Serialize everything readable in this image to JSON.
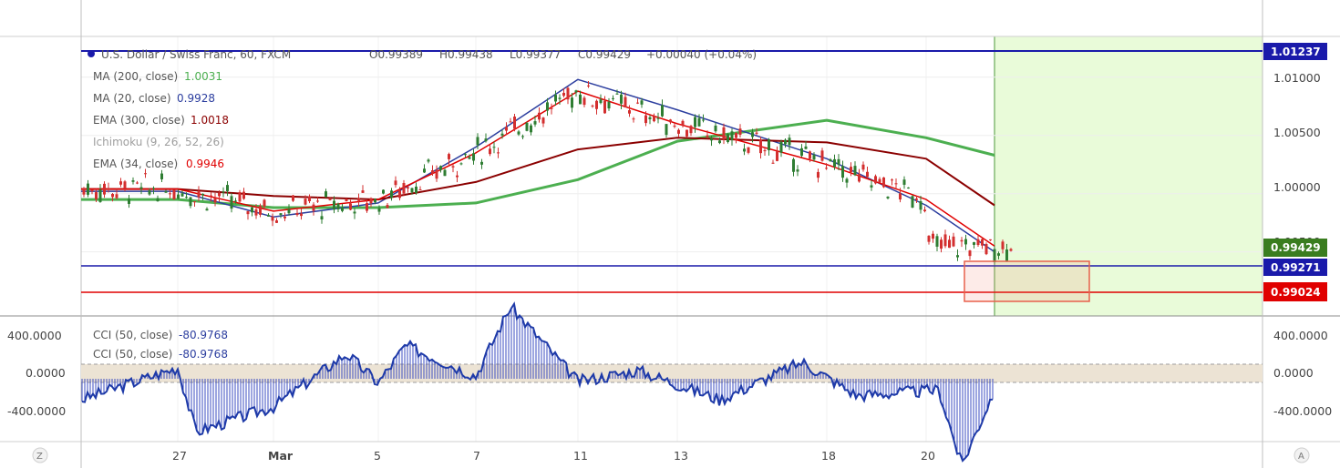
{
  "header": {
    "symbol": "U.S. Dollar / Swiss Franc, 60, FXCM",
    "open": "O0.99389",
    "high": "H0.99438",
    "low": "L0.99377",
    "close": "C0.99429",
    "change": "+0.00040 (+0.04%)"
  },
  "indicators": [
    {
      "name": "MA (200, close)",
      "value": "1.0031",
      "color": "#4caf50"
    },
    {
      "name": "MA (20, close)",
      "value": "0.9928",
      "color": "#2c3e9f"
    },
    {
      "name": "EMA (300, close)",
      "value": "1.0018",
      "color": "#8b0000"
    },
    {
      "name": "Ichimoku (9, 26, 52, 26)",
      "value": "",
      "color": "#9e9e9e"
    },
    {
      "name": "EMA (34, close)",
      "value": "0.9946",
      "color": "#e00000"
    }
  ],
  "cci_labels": [
    {
      "name": "CCI (50, close)",
      "value": "-80.9768"
    },
    {
      "name": "CCI (50, close)",
      "value": "-80.9768"
    }
  ],
  "price_tags": [
    {
      "id": "tag-top",
      "text": "1.01237",
      "color": "#1a1aaa",
      "price": 1.01237
    },
    {
      "id": "tag-close",
      "text": "0.99429",
      "color": "#3a7d1f",
      "price": 0.99429
    },
    {
      "id": "tag-blue",
      "text": "0.99271",
      "color": "#1a1aaa",
      "price": 0.99271
    },
    {
      "id": "tag-red",
      "text": "0.99024",
      "color": "#e00000",
      "price": 0.99024
    }
  ],
  "price_axis_ticks": [
    "1.01000",
    "1.00500",
    "1.00000",
    "0.99500"
  ],
  "cci_axis_ticks": [
    "400.0000",
    "0.0000",
    "-400.0000"
  ],
  "x_ticks": [
    "27",
    "Mar",
    "5",
    "7",
    "11",
    "13",
    "18",
    "20"
  ],
  "corner": {
    "left": "Z",
    "right": "A"
  },
  "chart_data": {
    "type": "line",
    "title": "U.S. Dollar / Swiss Franc, 60, FXCM",
    "xlabel": "",
    "ylabel": "",
    "x": [
      "27",
      "Mar",
      "5",
      "7",
      "11",
      "13",
      "18",
      "20"
    ],
    "ylim": [
      0.9895,
      1.0135
    ],
    "grid": true,
    "series": [
      {
        "name": "MA (200, close)",
        "values": [
          0.9995,
          0.9988,
          0.9988,
          0.9992,
          1.0012,
          1.0045,
          1.0063,
          1.0048
        ],
        "color": "#4caf50"
      },
      {
        "name": "MA (20, close)",
        "values": [
          1.0002,
          0.998,
          0.9992,
          1.004,
          1.0098,
          1.0072,
          1.003,
          0.999
        ],
        "color": "#2c3e9f"
      },
      {
        "name": "EMA (300, close)",
        "values": [
          1.0004,
          0.9998,
          0.9995,
          1.001,
          1.0038,
          1.0048,
          1.0044,
          1.003
        ],
        "color": "#8b0000"
      },
      {
        "name": "EMA (34, close)",
        "values": [
          1.0004,
          0.9985,
          0.9995,
          1.0035,
          1.0088,
          1.006,
          1.0025,
          0.9995
        ],
        "color": "#e00000"
      }
    ],
    "horizontal_lines": [
      1.01237,
      0.99271,
      0.99024
    ],
    "last_close": 0.99429,
    "cci": {
      "name": "CCI (50, close)",
      "value": -80.9768,
      "ylim": [
        -450,
        450
      ]
    }
  }
}
